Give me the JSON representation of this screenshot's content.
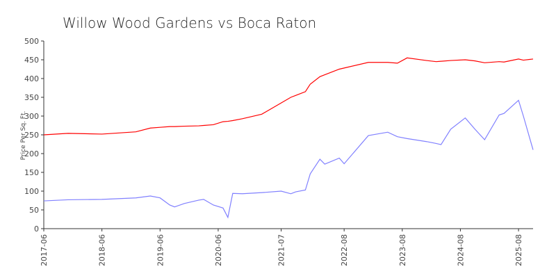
{
  "chart_data": {
    "type": "line",
    "title": "Willow Wood Gardens vs Boca Raton",
    "ylabel": "Price Per Sq. Ft.",
    "x": [
      "2017-06",
      "2017-11",
      "2018-06",
      "2019-01",
      "2019-04",
      "2019-06",
      "2019-08",
      "2019-09",
      "2019-11",
      "2020-02",
      "2020-03",
      "2020-05",
      "2020-07",
      "2020-08",
      "2020-09",
      "2020-11",
      "2021-03",
      "2021-07",
      "2021-09",
      "2021-10",
      "2021-12",
      "2022-01",
      "2022-03",
      "2022-04",
      "2022-07",
      "2022-08",
      "2023-01",
      "2023-05",
      "2023-07",
      "2023-09",
      "2024-01",
      "2024-03",
      "2024-04",
      "2024-06",
      "2024-09",
      "2024-11",
      "2025-01",
      "2025-04",
      "2025-05",
      "2025-08",
      "2025-09",
      "2025-11"
    ],
    "series": [
      {
        "color": "#ff0000",
        "values": [
          250,
          254,
          252,
          258,
          268,
          270,
          272,
          272,
          273,
          274,
          275,
          277,
          285,
          286,
          288,
          293,
          305,
          335,
          350,
          355,
          365,
          385,
          405,
          410,
          425,
          428,
          443,
          443,
          441,
          455,
          448,
          445,
          446,
          448,
          450,
          447,
          442,
          445,
          444,
          452,
          449,
          452
        ]
      },
      {
        "color": "#8080ff",
        "values": [
          74,
          77,
          78,
          82,
          87,
          82,
          63,
          58,
          67,
          76,
          78,
          63,
          55,
          30,
          94,
          93,
          96,
          100,
          93,
          98,
          103,
          146,
          185,
          172,
          188,
          173,
          248,
          257,
          245,
          240,
          232,
          227,
          224,
          265,
          295,
          265,
          237,
          303,
          307,
          342,
          300,
          210
        ]
      }
    ],
    "xlim": [
      "2017-06",
      "2025-11"
    ],
    "xticks": [
      "2017-06",
      "2018-06",
      "2019-06",
      "2020-06",
      "2021-07",
      "2022-08",
      "2023-08",
      "2024-08",
      "2025-08"
    ],
    "ylim": [
      0,
      500
    ],
    "yticks": [
      0,
      50,
      100,
      150,
      200,
      250,
      300,
      350,
      400,
      450,
      500
    ]
  }
}
